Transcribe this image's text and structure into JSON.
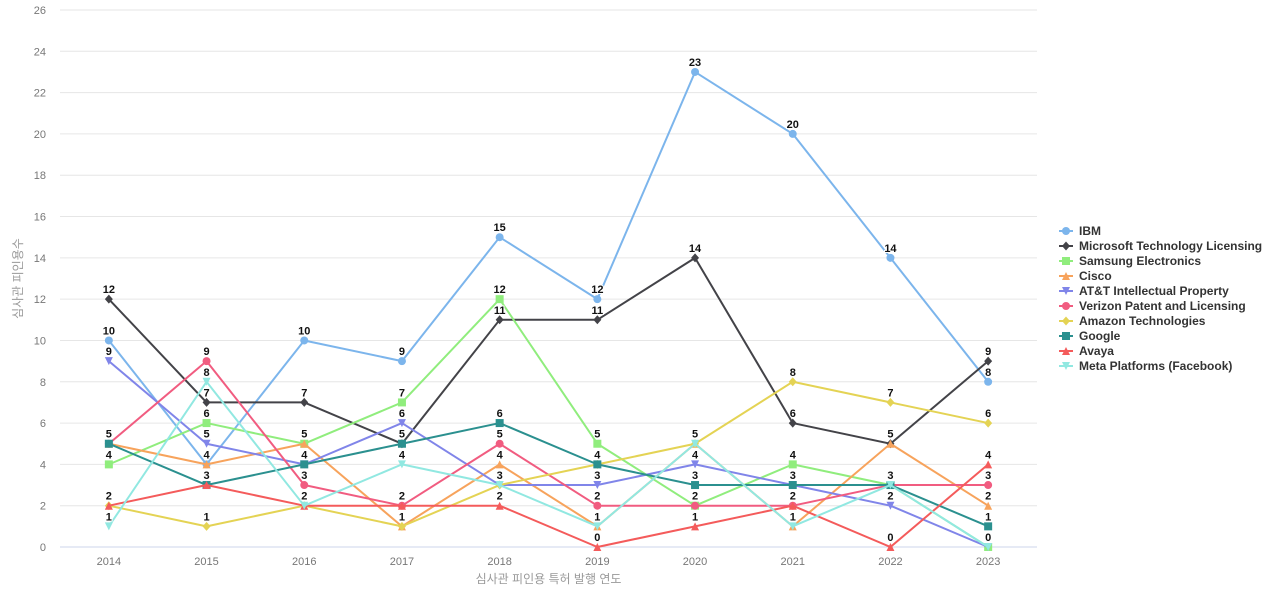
{
  "chart_data": {
    "type": "line",
    "title": "",
    "xlabel": "심사관 피인용 특허 발행 연도",
    "ylabel": "심사관 피인용수",
    "x": [
      "2014",
      "2015",
      "2016",
      "2017",
      "2018",
      "2019",
      "2020",
      "2021",
      "2022",
      "2023"
    ],
    "ylim": [
      0,
      26
    ],
    "yticks": [
      0,
      2,
      4,
      6,
      8,
      10,
      12,
      14,
      16,
      18,
      20,
      22,
      24,
      26
    ],
    "grid": true,
    "legend_position": "right",
    "series": [
      {
        "name": "IBM",
        "color": "#7cb5ec",
        "marker": "circle",
        "values": [
          10,
          4,
          10,
          9,
          15,
          12,
          23,
          20,
          14,
          8
        ]
      },
      {
        "name": "Microsoft Technology Licensing",
        "color": "#434348",
        "marker": "diamond",
        "values": [
          12,
          7,
          7,
          5,
          11,
          11,
          14,
          6,
          5,
          9
        ]
      },
      {
        "name": "Samsung Electronics",
        "color": "#90ed7d",
        "marker": "square",
        "values": [
          4,
          6,
          5,
          7,
          12,
          5,
          2,
          4,
          3,
          0
        ]
      },
      {
        "name": "Cisco",
        "color": "#f7a35c",
        "marker": "triangle",
        "values": [
          5,
          4,
          5,
          1,
          4,
          1,
          5,
          1,
          5,
          2
        ]
      },
      {
        "name": "AT&T Intellectual Property",
        "color": "#8085e9",
        "marker": "triangle-down",
        "values": [
          9,
          5,
          4,
          6,
          3,
          3,
          4,
          3,
          2,
          0
        ]
      },
      {
        "name": "Verizon Patent and Licensing",
        "color": "#f15c80",
        "marker": "circle",
        "values": [
          5,
          9,
          3,
          2,
          5,
          2,
          2,
          2,
          3,
          3
        ]
      },
      {
        "name": "Amazon Technologies",
        "color": "#e4d354",
        "marker": "diamond",
        "values": [
          2,
          1,
          2,
          1,
          3,
          4,
          5,
          8,
          7,
          6
        ]
      },
      {
        "name": "Google",
        "color": "#2b908f",
        "marker": "square",
        "values": [
          5,
          3,
          4,
          5,
          6,
          4,
          3,
          3,
          3,
          1
        ]
      },
      {
        "name": "Avaya",
        "color": "#f45b5b",
        "marker": "triangle",
        "values": [
          2,
          3,
          2,
          2,
          2,
          0,
          1,
          2,
          0,
          4
        ]
      },
      {
        "name": "Meta Platforms (Facebook)",
        "color": "#91e8e1",
        "marker": "triangle-down",
        "values": [
          1,
          8,
          2,
          4,
          3,
          1,
          5,
          1,
          3,
          0
        ]
      }
    ]
  }
}
